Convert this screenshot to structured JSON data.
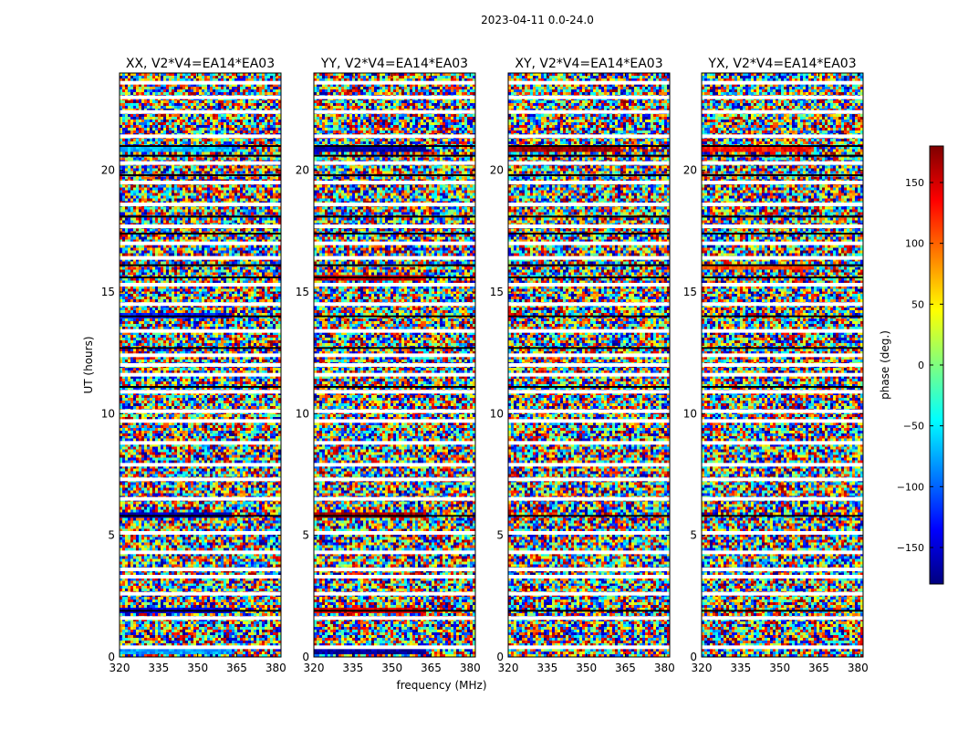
{
  "chart_data": {
    "type": "heatmap",
    "suptitle": "2023-04-11 0.0-24.0",
    "ylabel": "UT (hours)",
    "xlabel": "frequency (MHz)",
    "xlim": [
      320,
      382
    ],
    "ylim": [
      0,
      24
    ],
    "xticks": [
      "320",
      "335",
      "350",
      "365",
      "380"
    ],
    "xtick_values": [
      320,
      335,
      350,
      365,
      380
    ],
    "yticks": [
      "0",
      "5",
      "10",
      "15",
      "20"
    ],
    "ytick_values": [
      0,
      5,
      10,
      15,
      20
    ],
    "panels": [
      {
        "title": "XX, V2*V4=EA14*EA03",
        "product": "XX"
      },
      {
        "title": "YY, V2*V4=EA14*EA03",
        "product": "YY"
      },
      {
        "title": "XY, V2*V4=EA14*EA03",
        "product": "XY"
      },
      {
        "title": "YX, V2*V4=EA14*EA03",
        "product": "YX"
      }
    ],
    "colorbar": {
      "label": "phase (deg.)",
      "range": [
        -180,
        180
      ],
      "ticks": [
        "150",
        "100",
        "50",
        "0",
        "−50",
        "−100",
        "−150"
      ],
      "tick_values": [
        150,
        100,
        50,
        0,
        -50,
        -100,
        -150
      ],
      "colormap": "jet",
      "colors": [
        "#00007f",
        "#0000ff",
        "#007fff",
        "#00ffff",
        "#7fff7f",
        "#ffff00",
        "#ff7f00",
        "#ff0000",
        "#7f0000"
      ]
    },
    "gap_rows_hours": [
      0.4,
      1.6,
      2.6,
      3.3,
      3.6,
      4.3,
      5.1,
      6.5,
      7.3,
      7.9,
      8.8,
      9.7,
      10.1,
      10.9,
      11.6,
      12.0,
      12.4,
      13.4,
      14.5,
      15.3,
      16.4,
      17.0,
      17.7,
      18.6,
      19.5,
      20.3,
      21.4,
      22.4,
      23.0,
      23.6
    ],
    "flag_rows_hours": [
      1.9,
      5.8,
      11.1,
      12.7,
      14.0,
      15.6,
      16.1,
      17.4,
      18.1,
      19.8,
      20.6,
      21.0
    ],
    "coherent_bands": [
      {
        "panel": "XX",
        "hours": [
          0.1,
          0.5
        ],
        "phase": -80
      },
      {
        "panel": "XX",
        "hours": [
          1.85,
          2.05
        ],
        "phase": -150
      },
      {
        "panel": "XX",
        "hours": [
          5.75,
          5.95
        ],
        "phase": -160
      },
      {
        "panel": "XX",
        "hours": [
          20.8,
          21.0
        ],
        "phase": -70
      },
      {
        "panel": "XX",
        "hours": [
          13.9,
          14.1
        ],
        "phase": -130
      },
      {
        "panel": "YY",
        "hours": [
          0.1,
          0.4
        ],
        "phase": -170
      },
      {
        "panel": "YY",
        "hours": [
          1.85,
          2.05
        ],
        "phase": 150
      },
      {
        "panel": "YY",
        "hours": [
          5.75,
          5.95
        ],
        "phase": 170
      },
      {
        "panel": "YY",
        "hours": [
          20.8,
          21.0
        ],
        "phase": -165
      },
      {
        "panel": "YY",
        "hours": [
          15.5,
          15.7
        ],
        "phase": 160
      },
      {
        "panel": "XY",
        "hours": [
          20.8,
          21.0
        ],
        "phase": 175
      },
      {
        "panel": "YX",
        "hours": [
          20.8,
          21.0
        ],
        "phase": 130
      },
      {
        "panel": "YX",
        "hours": [
          15.9,
          16.1
        ],
        "phase": 110
      }
    ]
  }
}
